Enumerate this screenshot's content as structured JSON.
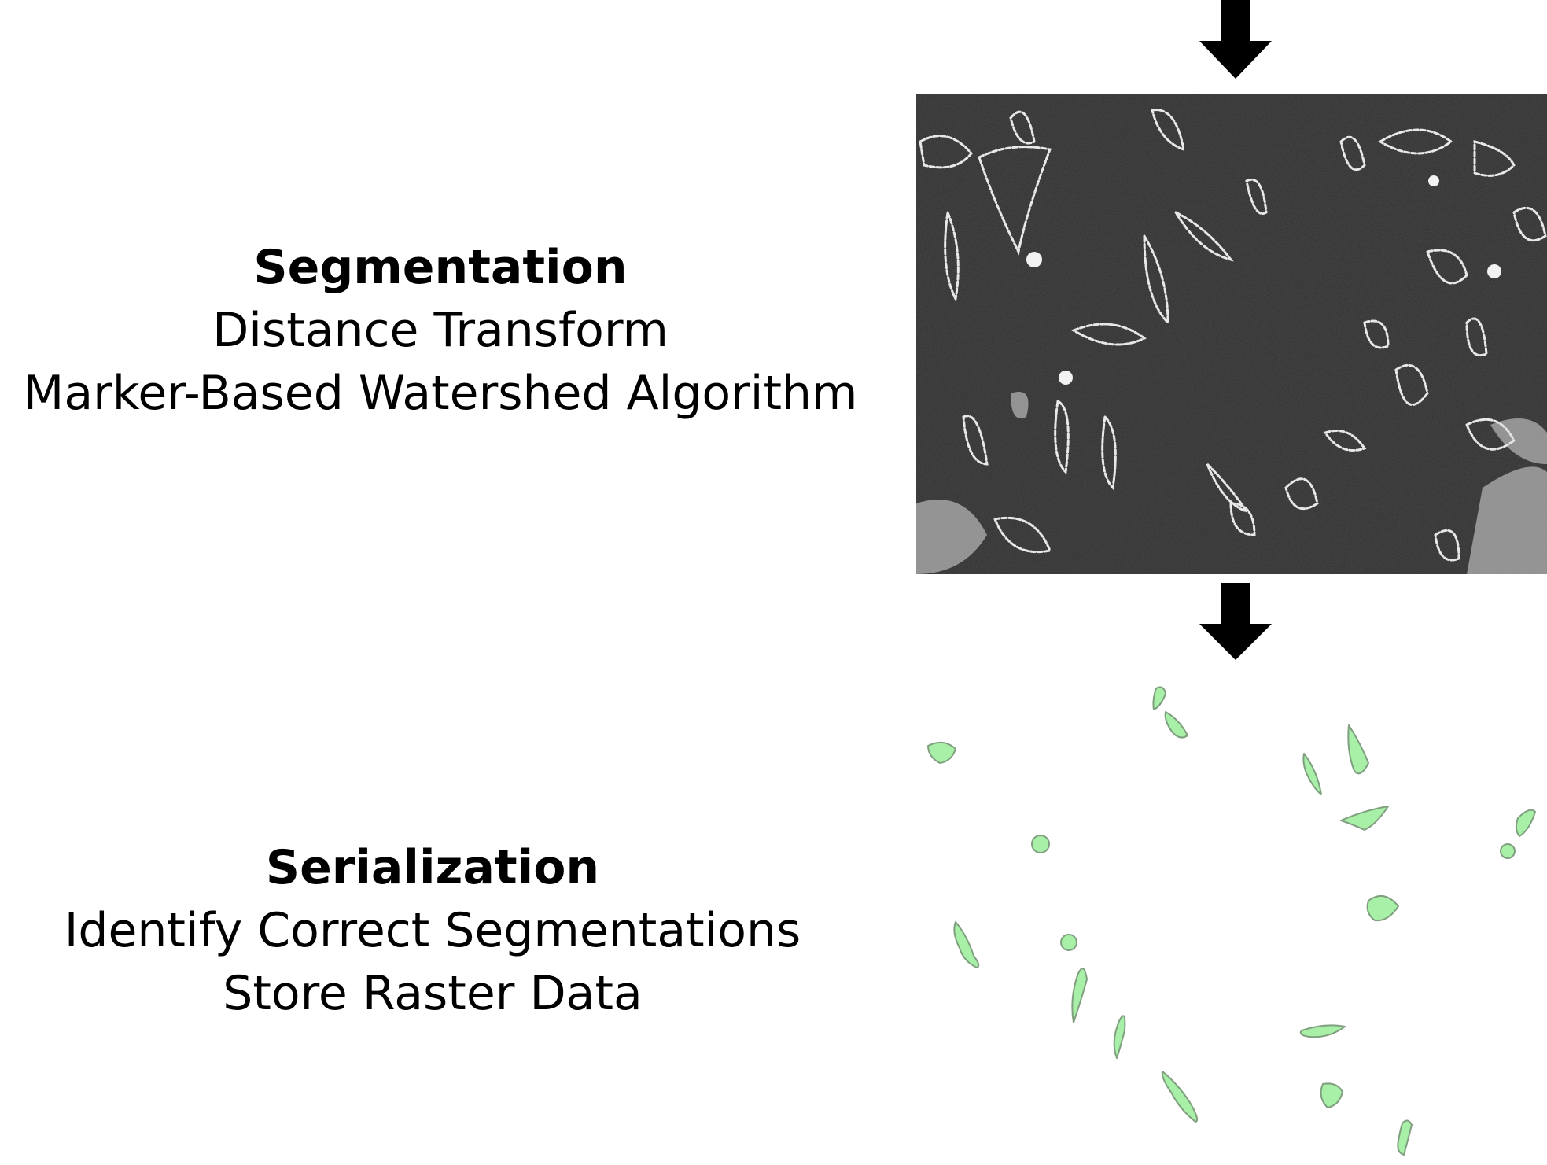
{
  "segmentation": {
    "title": "Segmentation",
    "lines": [
      "Distance Transform",
      "Marker-Based Watershed Algorithm"
    ]
  },
  "serialization": {
    "title": "Serialization",
    "lines": [
      "Identify Correct Segmentations",
      "Store Raster Data"
    ]
  },
  "icons": {
    "top_arrow": "down-arrow-icon",
    "middle_arrow": "down-arrow-icon"
  },
  "colors": {
    "arrow": "#000000",
    "micrograph_bg": "#2d2d2d",
    "cell_outline": "#e6e6e6",
    "mask_fill": "#a8f0a8",
    "mask_stroke": "#7a9a7a"
  }
}
